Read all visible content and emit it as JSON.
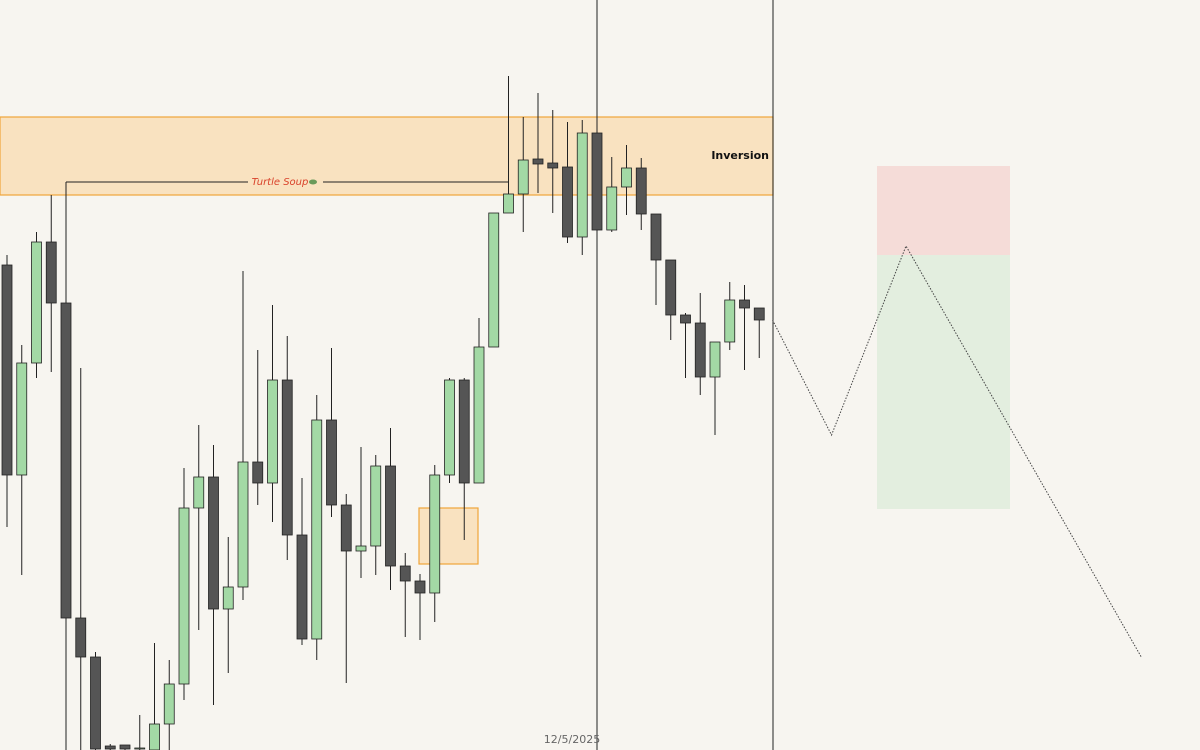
{
  "chart_data": {
    "type": "candlestick",
    "ylim": [
      0,
      750
    ],
    "up_color": "#a3d9a5",
    "down_color": "#555555",
    "open": [
      485,
      275,
      387,
      508,
      447,
      132,
      93,
      4,
      5,
      1,
      0,
      26,
      66,
      242,
      273,
      141,
      163,
      288,
      267,
      370,
      215,
      111,
      330,
      245,
      199,
      204,
      284,
      184,
      169,
      157,
      275,
      370,
      267,
      403,
      537,
      556,
      591,
      587,
      583,
      513,
      617,
      520,
      563,
      582,
      536,
      490,
      435,
      427,
      373,
      408,
      450,
      442
    ],
    "high": [
      495,
      405,
      518,
      555,
      568,
      382,
      98,
      6,
      5,
      35,
      107,
      90,
      282,
      325,
      305,
      213,
      479,
      400,
      445,
      414,
      272,
      355,
      402,
      256,
      303,
      295,
      322,
      197,
      176,
      285,
      372,
      372,
      432,
      537,
      674,
      633,
      657,
      640,
      628,
      630,
      632,
      593,
      605,
      592,
      536,
      490,
      437,
      457,
      408,
      468,
      465,
      442
    ],
    "low": [
      223,
      175,
      372,
      378,
      0,
      0,
      0,
      0,
      0,
      0,
      0,
      0,
      50,
      120,
      45,
      77,
      150,
      245,
      228,
      190,
      105,
      90,
      233,
      67,
      172,
      175,
      160,
      113,
      110,
      128,
      267,
      210,
      267,
      403,
      537,
      518,
      557,
      537,
      507,
      495,
      500,
      518,
      535,
      520,
      445,
      410,
      372,
      355,
      315,
      400,
      380,
      392
    ],
    "close": [
      275,
      387,
      508,
      447,
      132,
      93,
      1,
      1,
      1,
      2,
      26,
      66,
      242,
      273,
      141,
      163,
      288,
      267,
      370,
      215,
      111,
      330,
      245,
      199,
      204,
      284,
      184,
      169,
      157,
      275,
      370,
      267,
      403,
      537,
      556,
      590,
      586,
      582,
      513,
      617,
      520,
      563,
      582,
      536,
      490,
      435,
      427,
      373,
      408,
      450,
      442,
      430
    ],
    "zones": [
      {
        "label": "Inversion",
        "top": 633,
        "bottom": 555,
        "color": "#f9e2c0"
      },
      {
        "top": 242,
        "bottom": 186,
        "color": "#f9e2c0"
      }
    ],
    "level": {
      "label": "Turtle Soup",
      "value": 568,
      "color": "#d9432b"
    },
    "position": {
      "stop": 584,
      "entry": 495,
      "target": 241,
      "risk_color": "#f5dcd8",
      "reward_color": "#e3eedf"
    },
    "projection": {
      "x": [
        51.9,
        55.9,
        60.95,
        76.9
      ],
      "y": [
        430,
        315,
        504,
        93
      ]
    },
    "date_label": "12/5/2025"
  }
}
